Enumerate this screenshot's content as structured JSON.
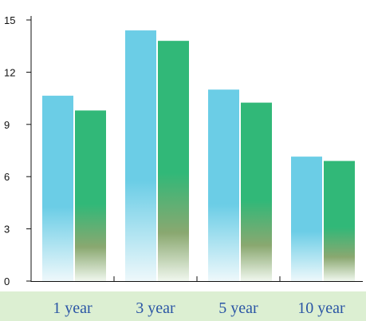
{
  "chart_data": {
    "type": "bar",
    "categories": [
      "1 year",
      "3 year",
      "5 year",
      "10 year"
    ],
    "series": [
      {
        "values": [
          10.65,
          14.4,
          11.0,
          7.15
        ]
      },
      {
        "values": [
          9.8,
          13.8,
          10.25,
          6.9
        ]
      }
    ],
    "ylim": [
      0,
      15
    ],
    "yticks": [
      "0",
      "3",
      "6",
      "9",
      "12",
      "15"
    ],
    "ytick_values": [
      0,
      3,
      6,
      9,
      12,
      15
    ],
    "grid": false,
    "legend": "none",
    "colors": {
      "series1_top": "#6bcde6",
      "series1_bottom": "#eef8fb",
      "series2_top": "#31b878",
      "series2_bottom": "#f0f7ee",
      "plot_background": "#ffffff",
      "page_background": "#dcefd2",
      "x_label_color": "#2a55a5"
    }
  }
}
